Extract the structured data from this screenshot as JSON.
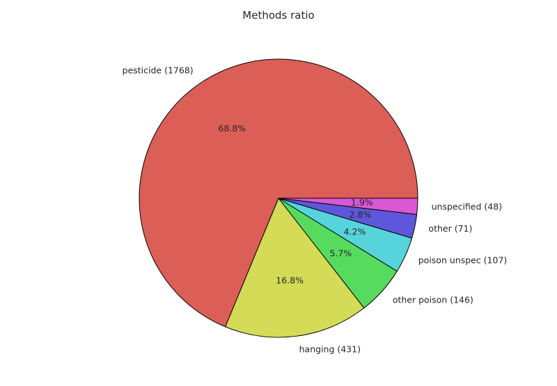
{
  "chart_data": {
    "type": "pie",
    "title": "Methods ratio",
    "slices": [
      {
        "label": "pesticide (1768)",
        "value": 1768,
        "percent_label": "68.8%",
        "color": "#db5f57"
      },
      {
        "label": "hanging (431)",
        "value": 431,
        "percent_label": "16.8%",
        "color": "#d3db57"
      },
      {
        "label": "other poison (146)",
        "value": 146,
        "percent_label": "5.7%",
        "color": "#57db5f"
      },
      {
        "label": "poison unspec (107)",
        "value": 107,
        "percent_label": "4.2%",
        "color": "#57d3db"
      },
      {
        "label": "other (71)",
        "value": 71,
        "percent_label": "2.8%",
        "color": "#5f57db"
      },
      {
        "label": "unspecified (48)",
        "value": 48,
        "percent_label": "1.9%",
        "color": "#db57d3"
      }
    ],
    "start_angle": "0 degrees (3 o'clock), counterclockwise",
    "edge_color": "#000000"
  }
}
